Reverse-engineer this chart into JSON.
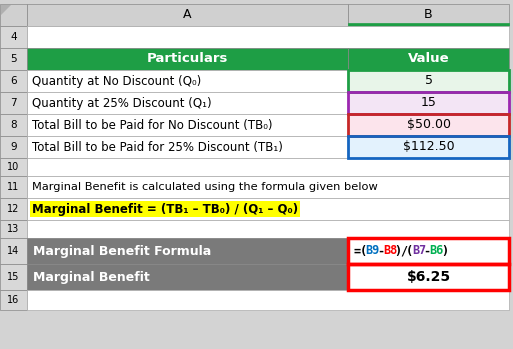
{
  "text_row11": "Marginal Benefit is calculated using the formula given below",
  "formula_label": "Marginal Benefit Formula",
  "result_label": "Marginal Benefit",
  "result_value": "$6.25",
  "col_header_bg": "#d0d0d0",
  "row_num_bg": "#d8d8d8",
  "header_green": "#1e9e45",
  "cell_b6_bg": "#e8f5e9",
  "cell_b7_bg": "#f3e5f5",
  "cell_b8_bg": "#fce4ec",
  "cell_b9_bg": "#e3f2fd",
  "row14_bg": "#7a7a7a",
  "row15_bg": "#7a7a7a",
  "yellow_bg": "#ffff00",
  "red_border": "#ff0000",
  "green_border": "#1e9e45",
  "purple_border": "#9c27b0",
  "dark_red_border": "#c62828",
  "blue_border": "#1565c0",
  "fig_bg": "#d3d3d3",
  "formula_parts": [
    [
      "=",
      "#000000"
    ],
    [
      "(",
      "#000000"
    ],
    [
      "B9",
      "#0070c0"
    ],
    [
      "-",
      "#000000"
    ],
    [
      "B8",
      "#ff0000"
    ],
    [
      ")",
      "#000000"
    ],
    [
      "/",
      "#000000"
    ],
    [
      "(",
      "#000000"
    ],
    [
      "B7",
      "#7030a0"
    ],
    [
      "-",
      "#000000"
    ],
    [
      "B6",
      "#00b050"
    ],
    [
      ")",
      "#000000"
    ]
  ]
}
